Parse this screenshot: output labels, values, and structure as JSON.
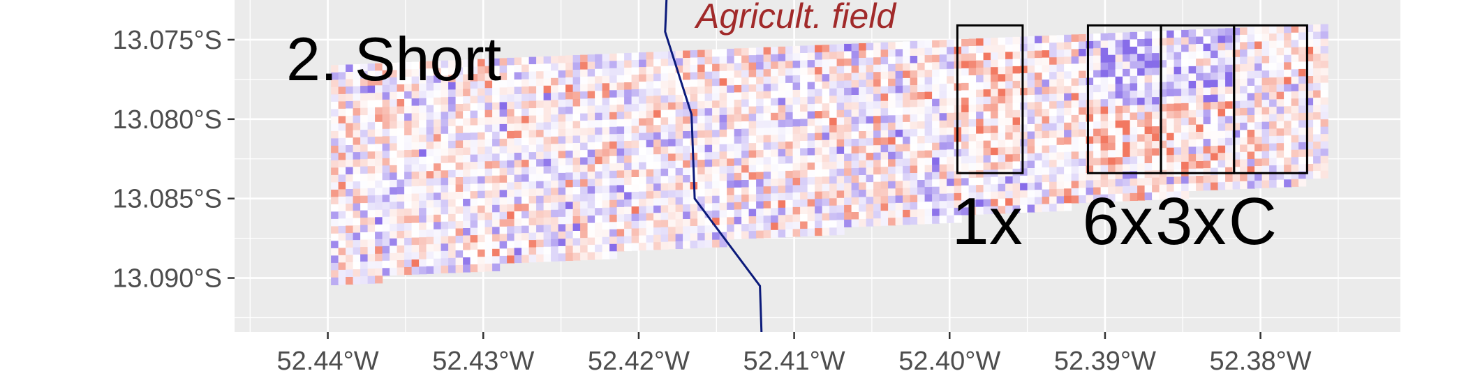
{
  "panel_title": "2. Short",
  "boundary_label": "Agricult. field",
  "colors": {
    "panel_background": "#ebebeb",
    "grid": "#ffffff",
    "boundary": "#0b1a7a",
    "boundary_label": "#a12a2a",
    "positive": "#f0694f",
    "negative": "#7a5ce6",
    "plot_outline": "#000000"
  },
  "chart_data": {
    "type": "heatmap",
    "title": "2. Short",
    "xlabel": "",
    "ylabel": "",
    "xlim": [
      -52.446,
      -52.371
    ],
    "ylim": [
      -13.0934,
      -13.0725
    ],
    "x_ticks": [
      {
        "value": -52.44,
        "label": "52.44°W"
      },
      {
        "value": -52.43,
        "label": "52.43°W"
      },
      {
        "value": -52.42,
        "label": "52.42°W"
      },
      {
        "value": -52.41,
        "label": "52.41°W"
      },
      {
        "value": -52.4,
        "label": "52.40°W"
      },
      {
        "value": -52.39,
        "label": "52.39°W"
      },
      {
        "value": -52.38,
        "label": "52.38°W"
      }
    ],
    "y_ticks": [
      {
        "value": -13.075,
        "label": "13.075°S"
      },
      {
        "value": -13.08,
        "label": "13.080°S"
      },
      {
        "value": -13.085,
        "label": "13.085°S"
      },
      {
        "value": -13.09,
        "label": "13.090°S"
      }
    ],
    "grid": true,
    "boundary_line": [
      [
        -52.4182,
        -13.0722
      ],
      [
        -52.4183,
        -13.0745
      ],
      [
        -52.4166,
        -13.0797
      ],
      [
        -52.4164,
        -13.085
      ],
      [
        -52.4122,
        -13.0905
      ],
      [
        -52.4121,
        -13.0934
      ]
    ],
    "plots": [
      {
        "label": "1x",
        "x_range": [
          -52.3995,
          -52.3953
        ],
        "y_range": [
          -13.0834,
          -13.0741
        ]
      },
      {
        "label": "6x",
        "x_range": [
          -52.3911,
          -52.3864
        ],
        "y_range": [
          -13.0834,
          -13.0741
        ]
      },
      {
        "label": "3x",
        "x_range": [
          -52.3864,
          -52.3817
        ],
        "y_range": [
          -13.0834,
          -13.0741
        ]
      },
      {
        "label": "C",
        "x_range": [
          -52.3817,
          -52.377
        ],
        "y_range": [
          -13.0834,
          -13.0741
        ]
      }
    ],
    "raster_extent": {
      "west": -52.4398,
      "east": -52.3756,
      "north_west_edge": -13.0766,
      "north_east_edge": -13.074,
      "south_west_edge": -13.0904,
      "south_east_edge": -13.0838
    },
    "raster_color_scale": {
      "low": "#7a5ce6",
      "mid": "#ffffff",
      "high": "#f0694f"
    }
  }
}
